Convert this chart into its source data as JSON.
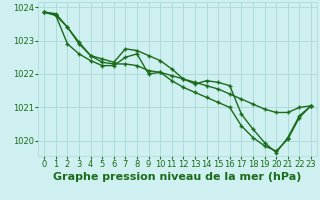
{
  "bg_color": "#cff0f0",
  "grid_color": "#aad8d8",
  "line_color": "#1a6b1a",
  "marker_color": "#1a6b1a",
  "xlabel": "Graphe pression niveau de la mer (hPa)",
  "ylabel": "",
  "xlim": [
    -0.5,
    23.5
  ],
  "ylim": [
    1019.55,
    1024.15
  ],
  "yticks": [
    1020,
    1021,
    1022,
    1023,
    1024
  ],
  "xticks": [
    0,
    1,
    2,
    3,
    4,
    5,
    6,
    7,
    8,
    9,
    10,
    11,
    12,
    13,
    14,
    15,
    16,
    17,
    18,
    19,
    20,
    21,
    22,
    23
  ],
  "series": [
    [
      1023.85,
      1023.8,
      1023.4,
      1022.9,
      1022.55,
      1022.35,
      1022.3,
      1022.3,
      1022.25,
      1022.1,
      1022.05,
      1021.95,
      1021.85,
      1021.75,
      1021.65,
      1021.55,
      1021.4,
      1021.25,
      1021.1,
      1020.95,
      1020.85,
      1020.85,
      1021.0,
      1021.05
    ],
    [
      1023.85,
      1023.75,
      1023.4,
      1022.95,
      1022.55,
      1022.45,
      1022.35,
      1022.75,
      1022.7,
      1022.55,
      1022.4,
      1022.15,
      1021.85,
      1021.7,
      1021.8,
      1021.75,
      1021.65,
      1020.8,
      1020.35,
      1019.95,
      1019.65,
      1020.1,
      1020.75,
      1021.05
    ],
    [
      1023.85,
      1023.75,
      1022.9,
      1022.6,
      1022.4,
      1022.25,
      1022.25,
      1022.5,
      1022.6,
      1022.0,
      1022.05,
      1021.8,
      1021.6,
      1021.45,
      1021.3,
      1021.15,
      1021.0,
      1020.45,
      1020.1,
      1019.85,
      1019.7,
      1020.05,
      1020.7,
      1021.05
    ]
  ],
  "title_fontsize": 8,
  "tick_fontsize": 6.0,
  "line_width": 1.0,
  "marker_size": 3.5
}
